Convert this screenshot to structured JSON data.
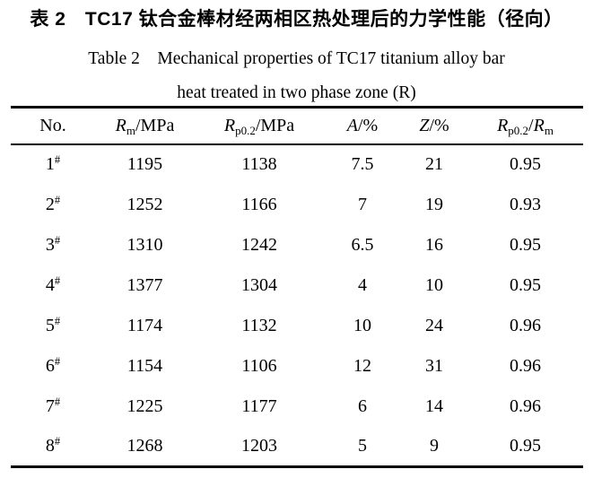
{
  "caption": {
    "zh": "表 2 TC17 钛合金棒材经两相区热处理后的力学性能（径向）",
    "en_line1": "Table 2 Mechanical properties of TC17 titanium alloy bar",
    "en_line2": "heat treated in two phase zone (R)"
  },
  "table": {
    "header": {
      "no": "No.",
      "rm_sym": "R",
      "rm_sub": "m",
      "rm_unit": "/MPa",
      "rp_sym": "R",
      "rp_sub": "p0.2",
      "rp_unit": "/MPa",
      "a_sym": "A",
      "a_unit": "/%",
      "z_sym": "Z",
      "z_unit": "/%",
      "ratio_sym1": "R",
      "ratio_sub1": "p0.2",
      "ratio_slash": "/",
      "ratio_sym2": "R",
      "ratio_sub2": "m"
    },
    "rows": [
      {
        "no": "1",
        "no_sup": "#",
        "rm": "1195",
        "rp": "1138",
        "a": "7.5",
        "z": "21",
        "ratio": "0.95"
      },
      {
        "no": "2",
        "no_sup": "#",
        "rm": "1252",
        "rp": "1166",
        "a": "7",
        "z": "19",
        "ratio": "0.93"
      },
      {
        "no": "3",
        "no_sup": "#",
        "rm": "1310",
        "rp": "1242",
        "a": "6.5",
        "z": "16",
        "ratio": "0.95"
      },
      {
        "no": "4",
        "no_sup": "#",
        "rm": "1377",
        "rp": "1304",
        "a": "4",
        "z": "10",
        "ratio": "0.95"
      },
      {
        "no": "5",
        "no_sup": "#",
        "rm": "1174",
        "rp": "1132",
        "a": "10",
        "z": "24",
        "ratio": "0.96"
      },
      {
        "no": "6",
        "no_sup": "#",
        "rm": "1154",
        "rp": "1106",
        "a": "12",
        "z": "31",
        "ratio": "0.96"
      },
      {
        "no": "7",
        "no_sup": "#",
        "rm": "1225",
        "rp": "1177",
        "a": "6",
        "z": "14",
        "ratio": "0.96"
      },
      {
        "no": "8",
        "no_sup": "#",
        "rm": "1268",
        "rp": "1203",
        "a": "5",
        "z": "9",
        "ratio": "0.95"
      }
    ]
  },
  "colors": {
    "text": "#000000",
    "background": "#ffffff",
    "rule": "#000000"
  }
}
